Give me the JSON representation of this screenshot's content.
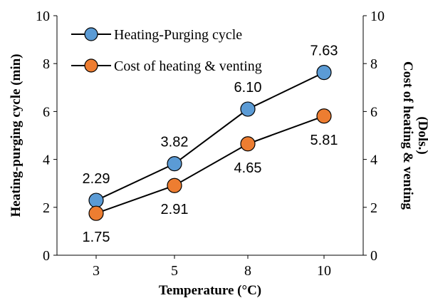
{
  "chart_data": {
    "type": "line",
    "title": "",
    "categories": [
      "3",
      "5",
      "8",
      "10"
    ],
    "xlabel": "Temperature (°C)",
    "ylabel_left": "Heating-purging cycle (min)",
    "ylabel_right": [
      "Cost of heating & venting",
      "(Dols.)"
    ],
    "ylim": [
      0,
      10
    ],
    "yticks": [
      "0",
      "2",
      "4",
      "6",
      "8",
      "10"
    ],
    "grid": false,
    "legend_position": "top-left",
    "series": [
      {
        "name": "Heating-Purging cycle",
        "values": [
          2.29,
          3.82,
          6.1,
          7.63
        ],
        "labels": [
          "2.29",
          "3.82",
          "6.10",
          "7.63"
        ],
        "label_position": "above",
        "color": "#5B9BD5"
      },
      {
        "name": "Cost of heating & venting",
        "values": [
          1.75,
          2.91,
          4.65,
          5.81
        ],
        "labels": [
          "1.75",
          "2.91",
          "4.65",
          "5.81"
        ],
        "label_position": "below",
        "color": "#ED7D31"
      }
    ]
  }
}
